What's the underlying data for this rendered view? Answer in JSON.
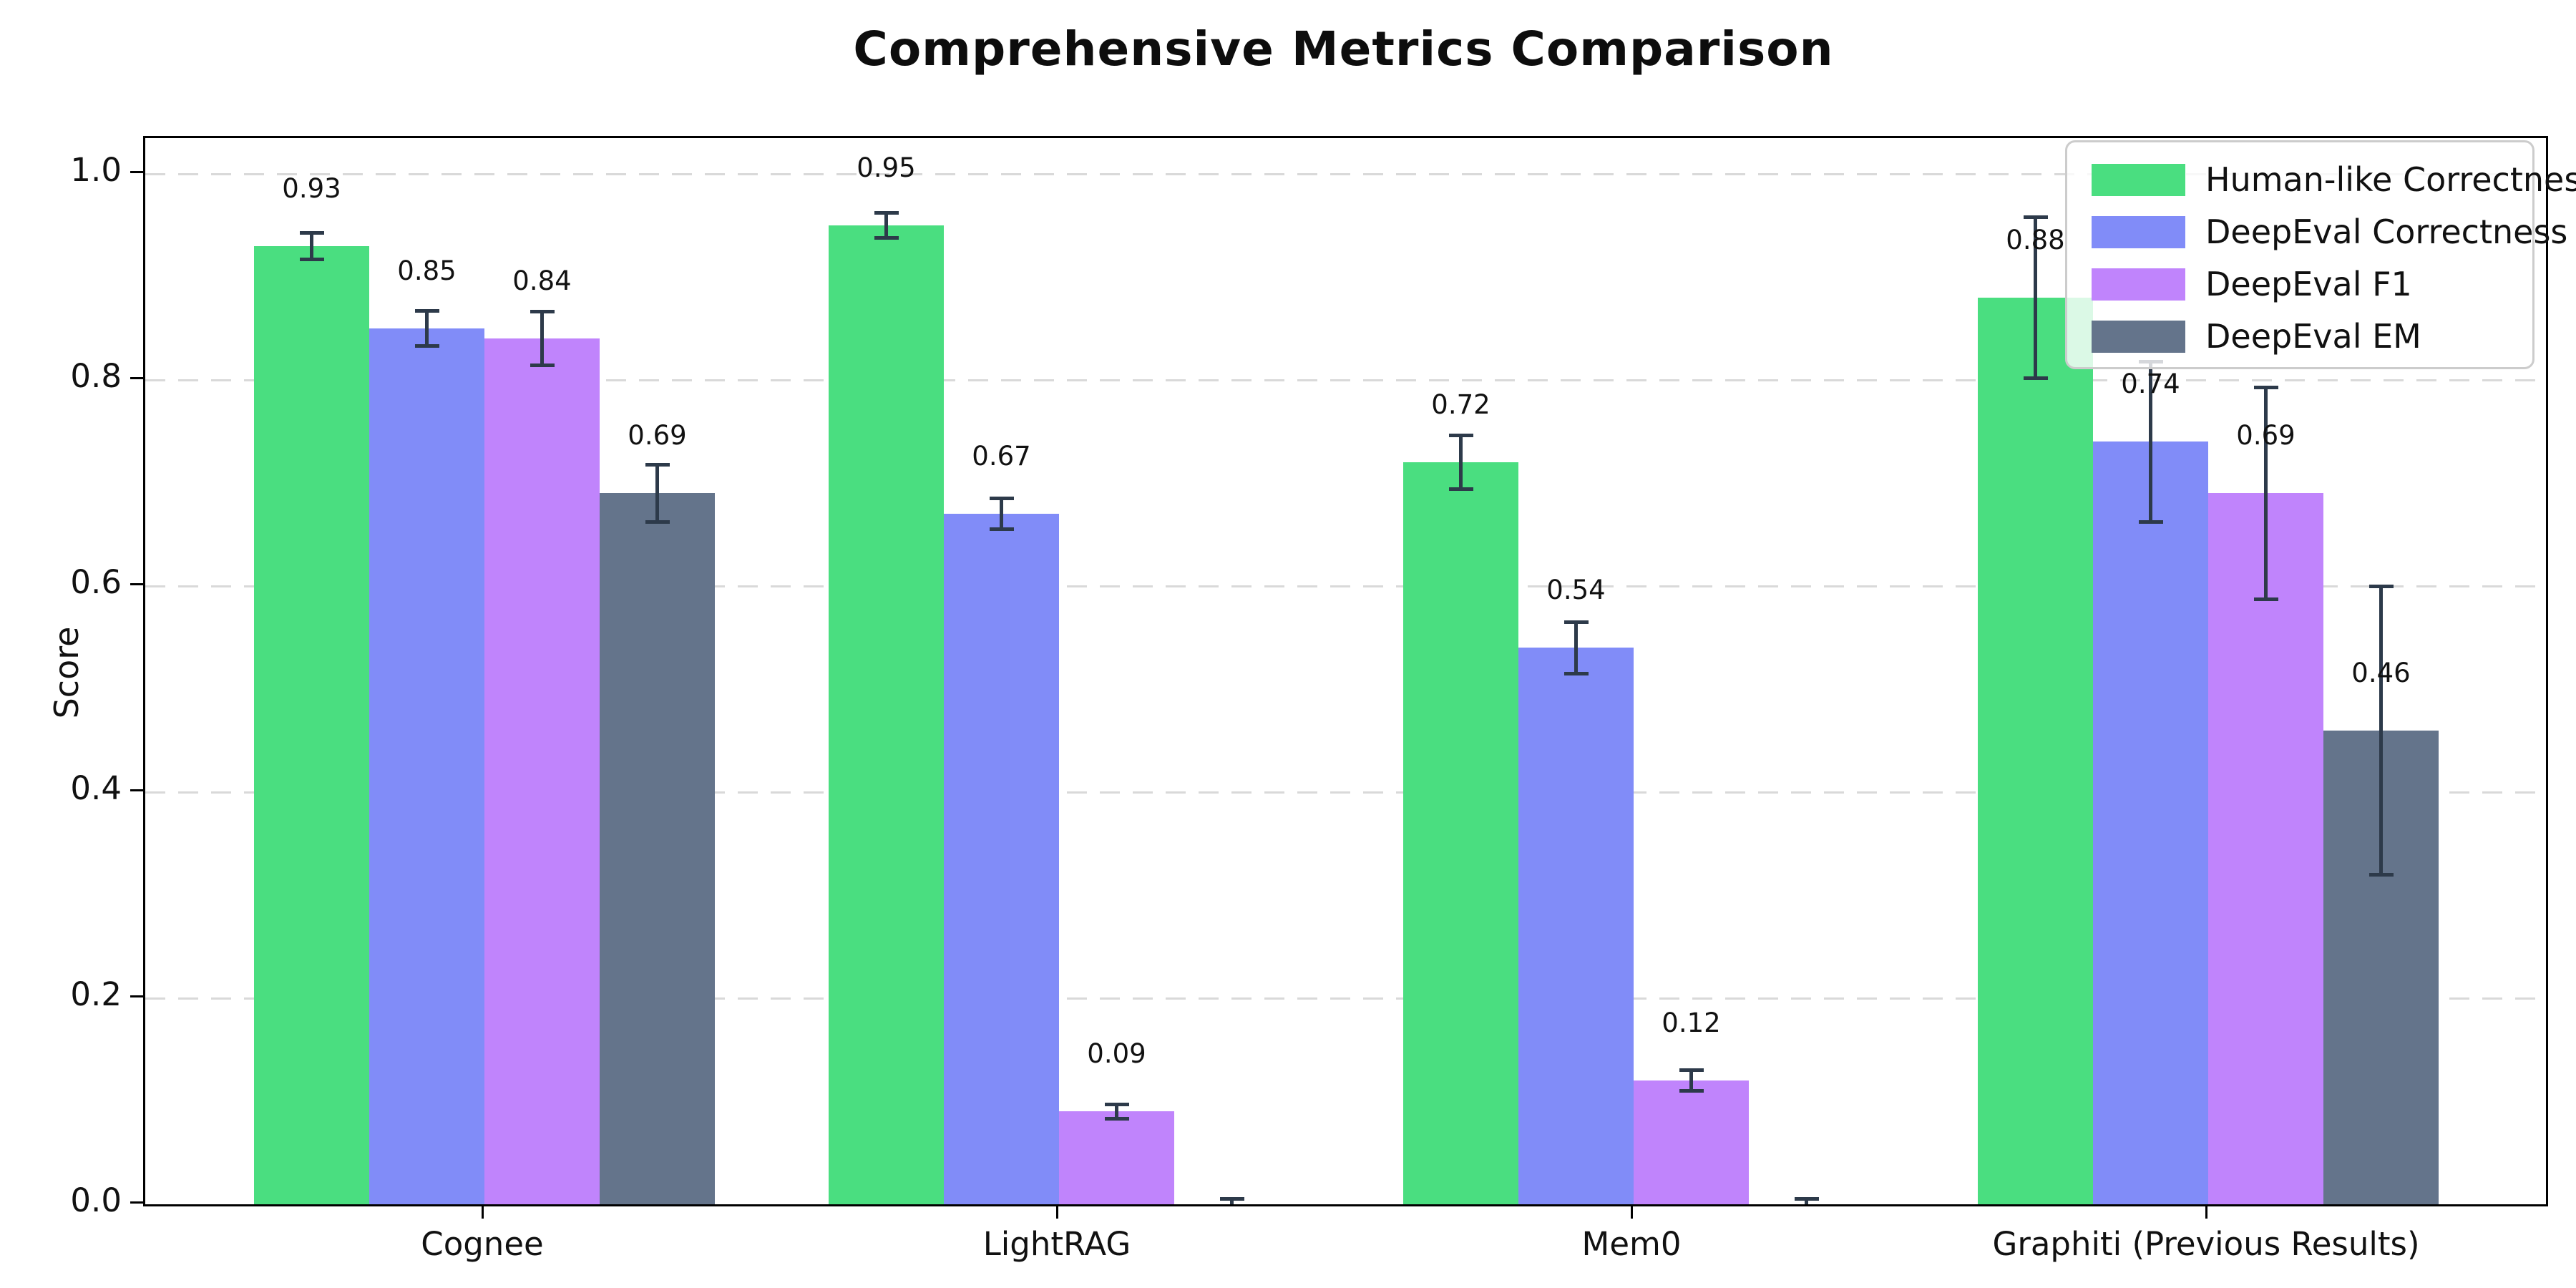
{
  "chart_data": {
    "type": "bar",
    "title": "Comprehensive Metrics Comparison",
    "xlabel": "",
    "ylabel": "Score",
    "categories": [
      "Cognee",
      "LightRAG",
      "Mem0",
      "Graphiti (Previous Results)"
    ],
    "series": [
      {
        "name": "Human-like Correctness",
        "color": "#4ade80",
        "values": [
          0.93,
          0.95,
          0.72,
          0.88
        ],
        "errors": [
          0.013,
          0.012,
          0.026,
          0.078
        ],
        "bar_labels": [
          "0.93",
          "0.95",
          "0.72",
          "0.88"
        ]
      },
      {
        "name": "DeepEval Correctness",
        "color": "#818cf8",
        "values": [
          0.85,
          0.67,
          0.54,
          0.74
        ],
        "errors": [
          0.017,
          0.015,
          0.025,
          0.078
        ],
        "bar_labels": [
          "0.85",
          "0.67",
          "0.54",
          "0.74"
        ]
      },
      {
        "name": "DeepEval F1",
        "color": "#c084fc",
        "values": [
          0.84,
          0.09,
          0.12,
          0.69
        ],
        "errors": [
          0.026,
          0.007,
          0.01,
          0.103
        ],
        "bar_labels": [
          "0.84",
          "0.09",
          "0.12",
          "0.69"
        ]
      },
      {
        "name": "DeepEval EM",
        "color": "#64748b",
        "values": [
          0.69,
          0.0,
          0.0,
          0.46
        ],
        "errors": [
          0.028,
          0.005,
          0.005,
          0.14
        ],
        "bar_labels": [
          "0.69",
          "",
          "",
          "0.46"
        ]
      }
    ],
    "y_ticks": [
      "0.0",
      "0.2",
      "0.4",
      "0.6",
      "0.8",
      "1.0"
    ],
    "ylim": [
      0.0,
      1.035
    ],
    "grid": "horizontal-dashed",
    "legend_position": "upper-right",
    "style_colors": {
      "error_bar": "#2d3a4a",
      "gridline": "#d9d9d9",
      "axis": "#000000",
      "legend_border": "#cccccc",
      "text": "#111111"
    }
  }
}
